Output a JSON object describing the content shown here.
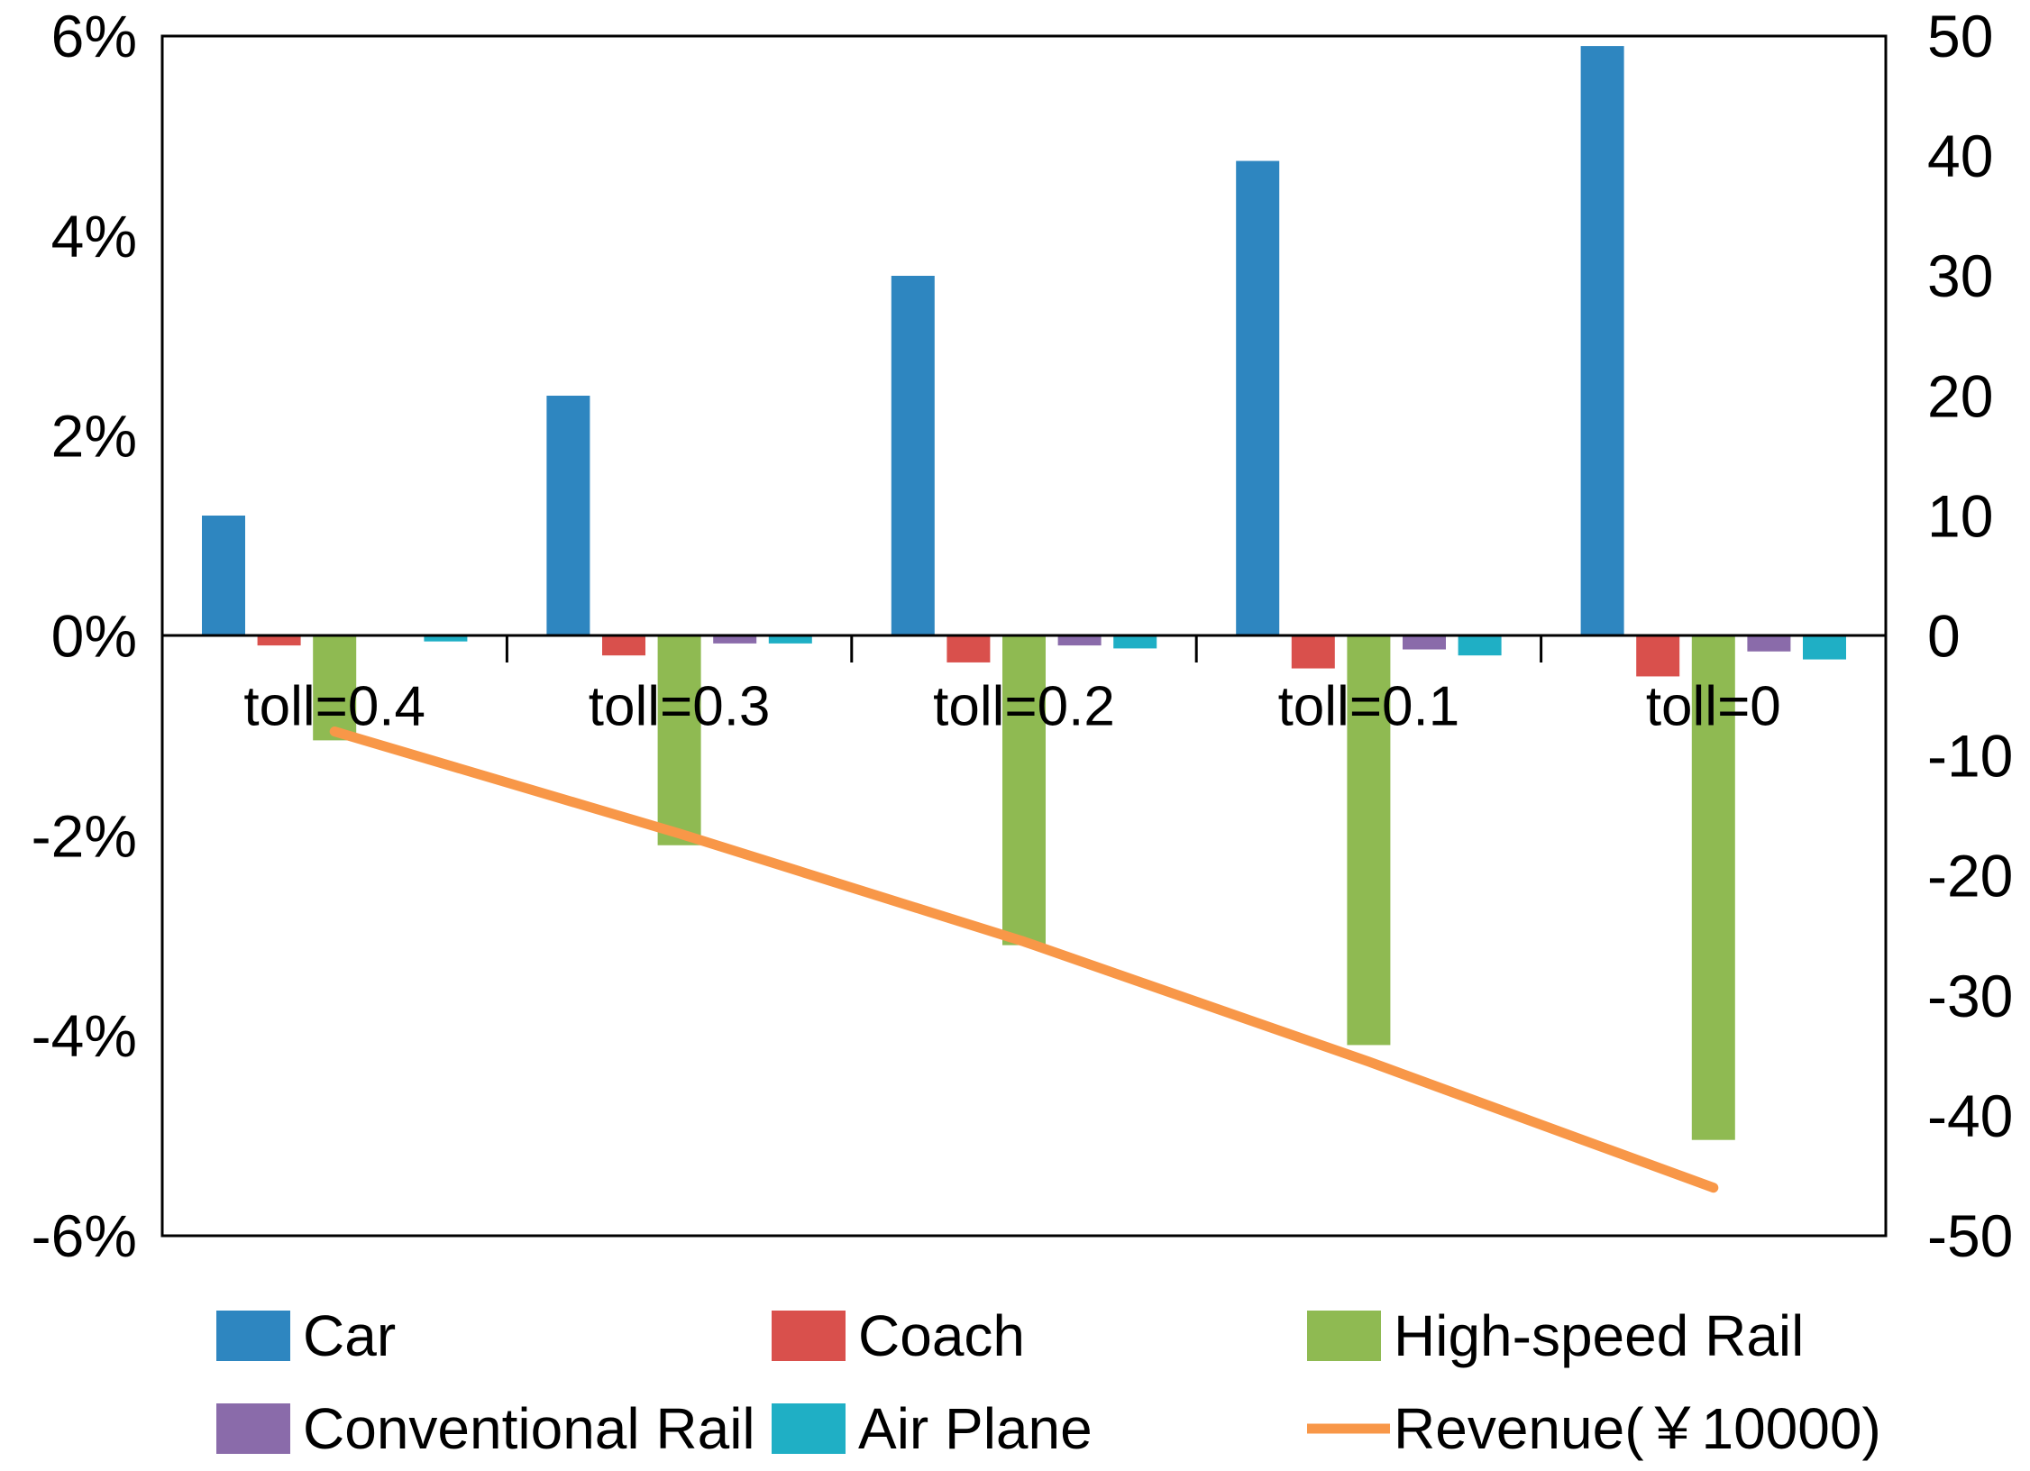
{
  "chart_data": {
    "type": "bar",
    "title": "",
    "categories": [
      "toll=0.4",
      "toll=0.3",
      "toll=0.2",
      "toll=0.1",
      "toll=0"
    ],
    "series": [
      {
        "name": "Car",
        "type": "bar",
        "axis": "left",
        "color": "#2E86C0",
        "values": [
          1.2,
          2.4,
          3.6,
          4.75,
          5.9
        ]
      },
      {
        "name": "Coach",
        "type": "bar",
        "axis": "left",
        "color": "#D9504C",
        "values": [
          -0.1,
          -0.2,
          -0.27,
          -0.33,
          -0.41
        ]
      },
      {
        "name": "High-speed Rail",
        "type": "bar",
        "axis": "left",
        "color": "#8FBA52",
        "values": [
          -1.05,
          -2.1,
          -3.1,
          -4.1,
          -5.05
        ]
      },
      {
        "name": "Conventional Rail",
        "type": "bar",
        "axis": "left",
        "color": "#8A6BAA",
        "values": [
          -0.01,
          -0.08,
          -0.1,
          -0.14,
          -0.16
        ]
      },
      {
        "name": "Air Plane",
        "type": "bar",
        "axis": "left",
        "color": "#1FAFC5",
        "values": [
          -0.06,
          -0.08,
          -0.13,
          -0.2,
          -0.24
        ]
      },
      {
        "name": "Revenue(￥10000)",
        "type": "line",
        "axis": "right",
        "color": "#F89748",
        "values": [
          -8,
          -16.5,
          -25.5,
          -35.5,
          -46
        ]
      }
    ],
    "left_axis": {
      "unit": "%",
      "min": -6,
      "max": 6,
      "tick_step": 2,
      "labels": [
        "6%",
        "4%",
        "2%",
        "0%",
        "-2%",
        "-4%",
        "-6%"
      ]
    },
    "right_axis": {
      "unit": "",
      "min": -50,
      "max": 50,
      "tick_step": 10,
      "labels": [
        "50",
        "40",
        "30",
        "20",
        "10",
        "0",
        "-10",
        "-20",
        "-30",
        "-40",
        "-50"
      ]
    },
    "legend": {
      "position": "bottom",
      "rows": [
        [
          "Car",
          "Coach",
          "High-speed Rail"
        ],
        [
          "Conventional Rail",
          "Air Plane",
          "Revenue(￥10000)"
        ]
      ]
    },
    "grid": false,
    "plot_border": true
  }
}
